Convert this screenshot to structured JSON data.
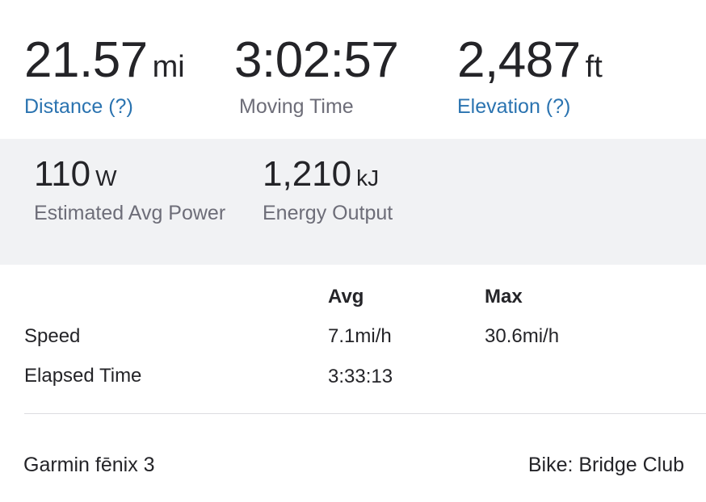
{
  "summary": {
    "distance": {
      "value": "21.57",
      "unit": "mi",
      "label": "Distance (?)"
    },
    "moving_time": {
      "value": "3:02:57",
      "label": "Moving Time"
    },
    "elevation": {
      "value": "2,487",
      "unit": "ft",
      "label": "Elevation (?)"
    }
  },
  "secondary": {
    "power": {
      "value": "110",
      "unit": "W",
      "label": "Estimated Avg Power"
    },
    "energy": {
      "value": "1,210",
      "unit": "kJ",
      "label": "Energy Output"
    }
  },
  "table": {
    "headers": {
      "avg": "Avg",
      "max": "Max"
    },
    "rows": [
      {
        "label": "Speed",
        "avg": "7.1mi/h",
        "max": "30.6mi/h"
      },
      {
        "label": "Elapsed Time",
        "avg": "3:33:13",
        "max": ""
      }
    ]
  },
  "footer": {
    "device": "Garmin fēnix 3",
    "bike": "Bike: Bridge Club"
  },
  "colors": {
    "link": "#2a73b0",
    "muted": "#6d6d78",
    "band": "#f1f2f4",
    "text": "#242428"
  }
}
